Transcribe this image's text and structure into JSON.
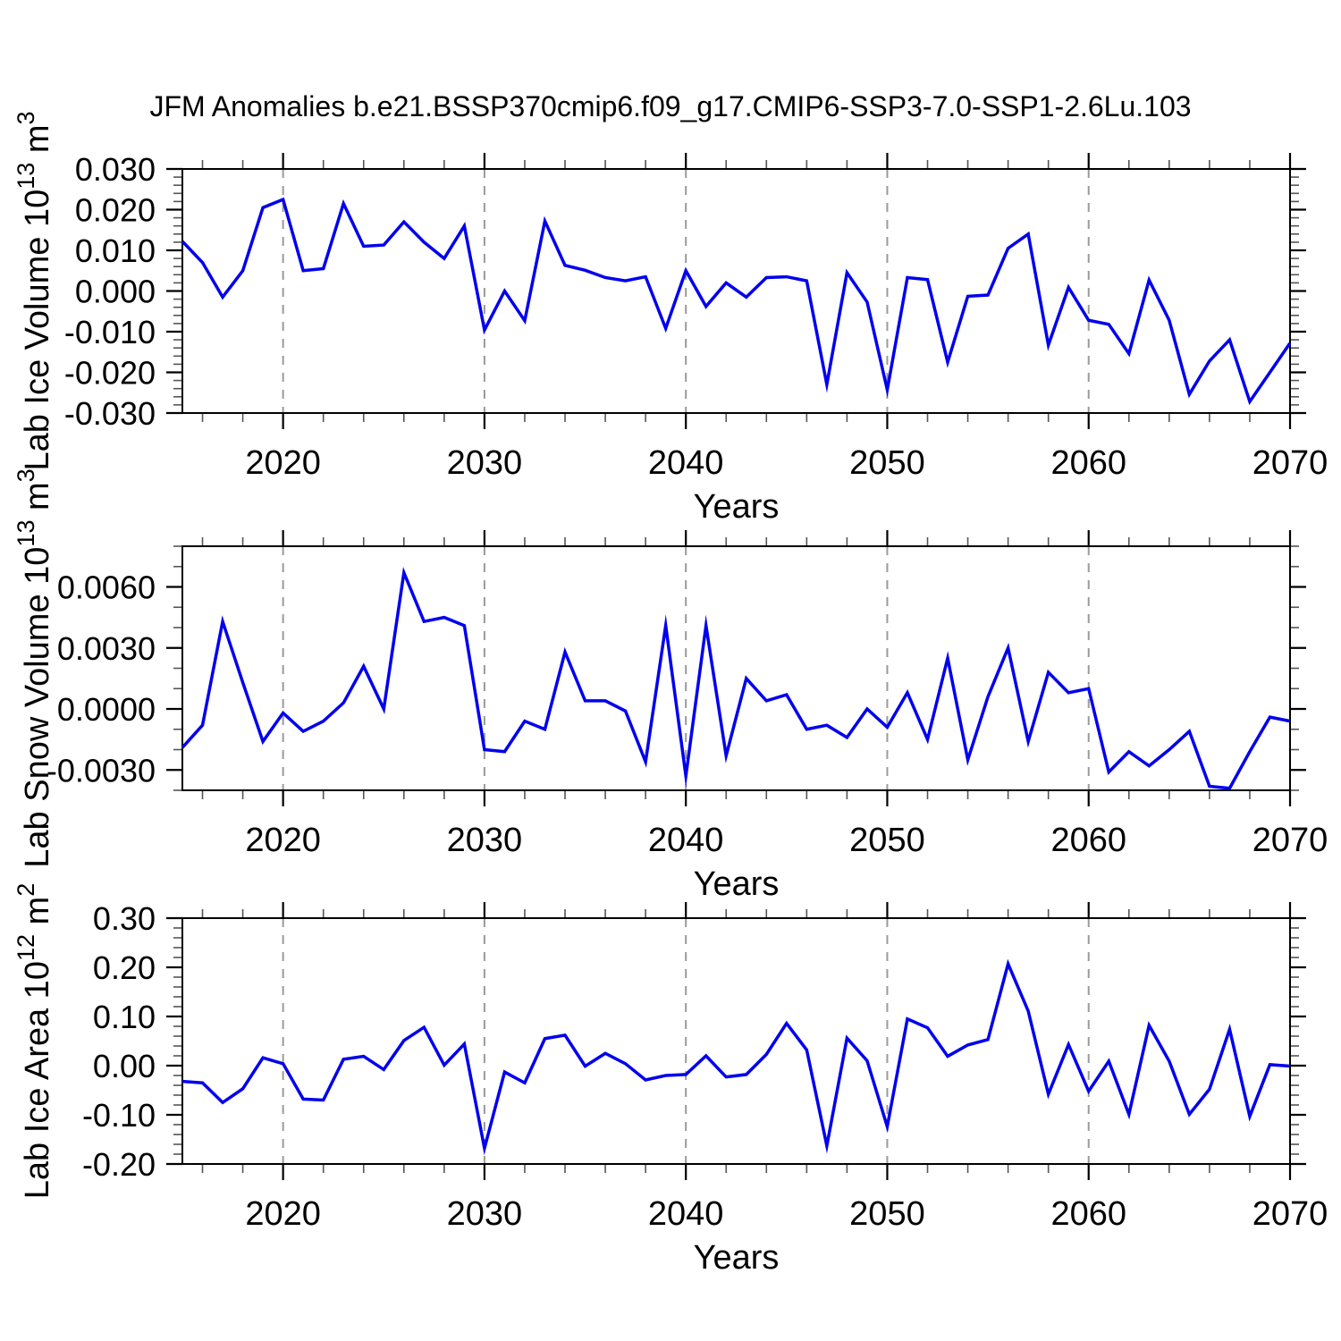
{
  "title": "JFM Anomalies b.e21.BSSP370cmip6.f09_g17.CMIP6-SSP3-7.0-SSP1-2.6Lu.103",
  "style": {
    "line_color": "#0000EE",
    "grid_color": "#9A9A9A",
    "axis_color": "#000000",
    "minor_tick_color": "#555555",
    "background": "#FFFFFF"
  },
  "chart_data": [
    {
      "type": "line",
      "panel": "lab-ice-volume",
      "ylabel_parts": [
        {
          "text": "Lab Ice Volume 10"
        },
        {
          "text": "13",
          "sup": true
        },
        {
          "text": " m"
        },
        {
          "text": "3",
          "sup": true
        }
      ],
      "xlabel": "Years",
      "xlim": [
        2015,
        2070
      ],
      "ylim": [
        -0.03,
        0.03
      ],
      "xtick_major": [
        2020,
        2030,
        2040,
        2050,
        2060,
        2070
      ],
      "xtick_labels": [
        "2020",
        "2030",
        "2040",
        "2050",
        "2060",
        "2070"
      ],
      "xtick_minor_step": 2,
      "grid_years": [
        2020,
        2030,
        2040,
        2050,
        2060
      ],
      "ytick_values": [
        0.03,
        0.02,
        0.01,
        0.0,
        -0.01,
        -0.02,
        -0.03
      ],
      "ytick_labels": [
        "0.030",
        "0.020",
        "0.010",
        "0.000",
        "-0.010",
        "-0.020",
        "-0.030"
      ],
      "y_minor_step": 0.002,
      "years": [
        2015,
        2016,
        2017,
        2018,
        2019,
        2020,
        2021,
        2022,
        2023,
        2024,
        2025,
        2026,
        2027,
        2028,
        2029,
        2030,
        2031,
        2032,
        2033,
        2034,
        2035,
        2036,
        2037,
        2038,
        2039,
        2040,
        2041,
        2042,
        2043,
        2044,
        2045,
        2046,
        2047,
        2048,
        2049,
        2050,
        2051,
        2052,
        2053,
        2054,
        2055,
        2056,
        2057,
        2058,
        2059,
        2060,
        2061,
        2062,
        2063,
        2064,
        2065,
        2066,
        2067,
        2068,
        2069,
        2070
      ],
      "values": [
        0.0122,
        0.007,
        -0.0015,
        0.005,
        0.0205,
        0.0225,
        0.005,
        0.0055,
        0.0215,
        0.011,
        0.0113,
        0.017,
        0.012,
        0.008,
        0.016,
        -0.0096,
        0.0,
        -0.0073,
        0.0172,
        0.0063,
        0.0051,
        0.0033,
        0.0025,
        0.0035,
        -0.0092,
        0.005,
        -0.0038,
        0.002,
        -0.0015,
        0.0033,
        0.0035,
        0.0025,
        -0.023,
        0.0045,
        -0.0027,
        -0.0243,
        0.0033,
        0.0028,
        -0.0175,
        -0.0013,
        -0.001,
        0.0105,
        0.014,
        -0.0133,
        0.0009,
        -0.0072,
        -0.0082,
        -0.0154,
        0.0027,
        -0.0072,
        -0.0254,
        -0.0172,
        -0.012,
        -0.0272,
        -0.02,
        -0.0128
      ]
    },
    {
      "type": "line",
      "panel": "lab-snow-volume",
      "ylabel_parts": [
        {
          "text": "Lab Snow Volume 10"
        },
        {
          "text": "13",
          "sup": true
        },
        {
          "text": " m"
        },
        {
          "text": "3",
          "sup": true
        }
      ],
      "xlabel": "Years",
      "xlim": [
        2015,
        2070
      ],
      "ylim": [
        -0.004,
        0.008
      ],
      "xtick_major": [
        2020,
        2030,
        2040,
        2050,
        2060,
        2070
      ],
      "xtick_labels": [
        "2020",
        "2030",
        "2040",
        "2050",
        "2060",
        "2070"
      ],
      "xtick_minor_step": 2,
      "grid_years": [
        2020,
        2030,
        2040,
        2050,
        2060
      ],
      "ytick_values": [
        0.006,
        0.003,
        0.0,
        -0.003
      ],
      "ytick_labels": [
        "0.0060",
        "0.0030",
        "0.0000",
        "-0.0030"
      ],
      "y_minor_step": 0.001,
      "years": [
        2015,
        2016,
        2017,
        2018,
        2019,
        2020,
        2021,
        2022,
        2023,
        2024,
        2025,
        2026,
        2027,
        2028,
        2029,
        2030,
        2031,
        2032,
        2033,
        2034,
        2035,
        2036,
        2037,
        2038,
        2039,
        2040,
        2041,
        2042,
        2043,
        2044,
        2045,
        2046,
        2047,
        2048,
        2049,
        2050,
        2051,
        2052,
        2053,
        2054,
        2055,
        2056,
        2057,
        2058,
        2059,
        2060,
        2061,
        2062,
        2063,
        2064,
        2065,
        2066,
        2067,
        2068,
        2069,
        2070
      ],
      "values": [
        -0.0019,
        -0.0008,
        0.0043,
        0.0013,
        -0.0016,
        -0.0002,
        -0.0011,
        -0.0006,
        0.0003,
        0.0021,
        0.0,
        0.0067,
        0.0043,
        0.0045,
        0.0041,
        -0.002,
        -0.0021,
        -0.0006,
        -0.001,
        0.0028,
        0.0004,
        0.0004,
        -0.0001,
        -0.0026,
        0.0041,
        -0.0033,
        0.0041,
        -0.0023,
        0.0015,
        0.0004,
        0.0007,
        -0.001,
        -0.0008,
        -0.0014,
        0.0,
        -0.0009,
        0.0008,
        -0.0015,
        0.0025,
        -0.0025,
        0.0006,
        0.003,
        -0.0016,
        0.0018,
        0.0008,
        0.001,
        -0.0031,
        -0.0021,
        -0.0028,
        -0.002,
        -0.0011,
        -0.0038,
        -0.0039,
        -0.0021,
        -0.0004,
        -0.0006
      ]
    },
    {
      "type": "line",
      "panel": "lab-ice-area",
      "ylabel_parts": [
        {
          "text": "Lab Ice Area 10"
        },
        {
          "text": "12",
          "sup": true
        },
        {
          "text": " m"
        },
        {
          "text": "2",
          "sup": true
        }
      ],
      "xlabel": "Years",
      "xlim": [
        2015,
        2070
      ],
      "ylim": [
        -0.2,
        0.3
      ],
      "xtick_major": [
        2020,
        2030,
        2040,
        2050,
        2060,
        2070
      ],
      "xtick_labels": [
        "2020",
        "2030",
        "2040",
        "2050",
        "2060",
        "2070"
      ],
      "xtick_minor_step": 2,
      "grid_years": [
        2020,
        2030,
        2040,
        2050,
        2060
      ],
      "ytick_values": [
        0.3,
        0.2,
        0.1,
        0.0,
        -0.1,
        -0.2
      ],
      "ytick_labels": [
        "0.30",
        "0.20",
        "0.10",
        "0.00",
        "-0.10",
        "-0.20"
      ],
      "y_minor_step": 0.02,
      "years": [
        2015,
        2016,
        2017,
        2018,
        2019,
        2020,
        2021,
        2022,
        2023,
        2024,
        2025,
        2026,
        2027,
        2028,
        2029,
        2030,
        2031,
        2032,
        2033,
        2034,
        2035,
        2036,
        2037,
        2038,
        2039,
        2040,
        2041,
        2042,
        2043,
        2044,
        2045,
        2046,
        2047,
        2048,
        2049,
        2050,
        2051,
        2052,
        2053,
        2054,
        2055,
        2056,
        2057,
        2058,
        2059,
        2060,
        2061,
        2062,
        2063,
        2064,
        2065,
        2066,
        2067,
        2068,
        2069,
        2070
      ],
      "values": [
        -0.032,
        -0.035,
        -0.075,
        -0.047,
        0.016,
        0.004,
        -0.068,
        -0.07,
        0.013,
        0.019,
        -0.008,
        0.051,
        0.078,
        0.001,
        0.044,
        -0.168,
        -0.013,
        -0.035,
        0.055,
        0.062,
        -0.001,
        0.025,
        0.004,
        -0.029,
        -0.02,
        -0.018,
        0.02,
        -0.023,
        -0.018,
        0.023,
        0.086,
        0.032,
        -0.163,
        0.056,
        0.01,
        -0.124,
        0.095,
        0.077,
        0.019,
        0.042,
        0.053,
        0.207,
        0.111,
        -0.058,
        0.043,
        -0.052,
        0.009,
        -0.099,
        0.082,
        0.009,
        -0.099,
        -0.048,
        0.074,
        -0.103,
        0.002,
        -0.001
      ]
    }
  ]
}
